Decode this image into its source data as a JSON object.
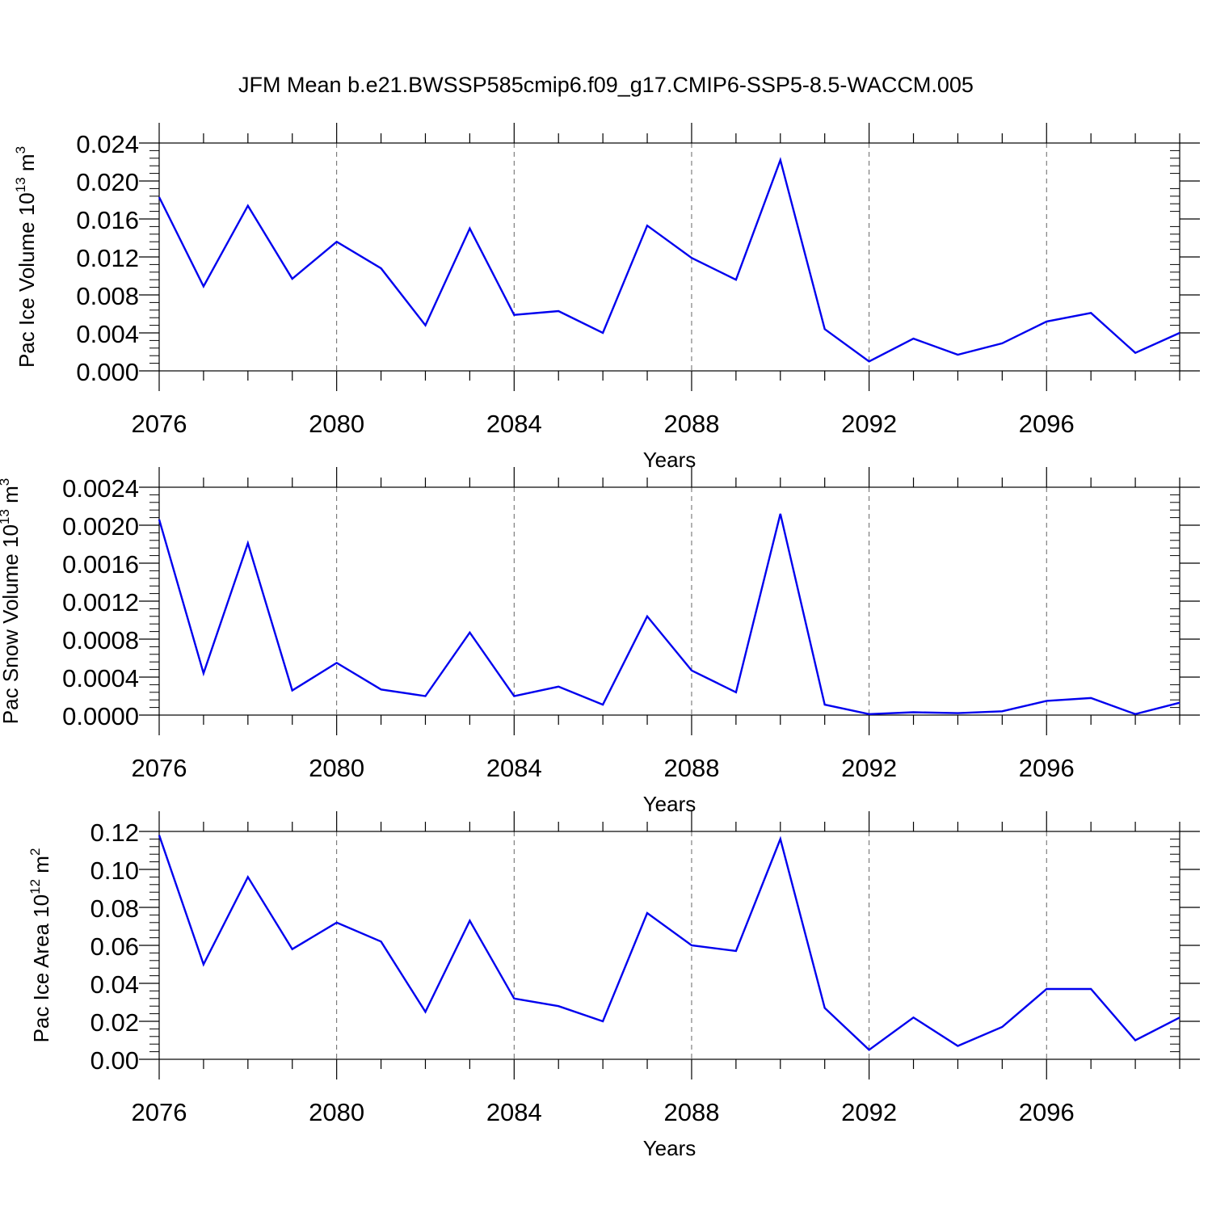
{
  "figure_title": "JFM Mean b.e21.BWSSP585cmip6.f09_g17.CMIP6-SSP5-8.5-WACCM.005",
  "chart_data": [
    {
      "type": "line",
      "ylabel_prefix": "Pac Ice Volume 10",
      "ylabel_exponent": "13",
      "ylabel_unit": " m",
      "ylabel_unit_exponent": "3",
      "xlabel": "Years",
      "xlim": [
        2076,
        2099
      ],
      "ylim": [
        0.0,
        0.024
      ],
      "xticks": [
        2076,
        2080,
        2084,
        2088,
        2092,
        2096
      ],
      "xtick_labels": [
        "2076",
        "2080",
        "2084",
        "2088",
        "2092",
        "2096"
      ],
      "yticks": [
        0.0,
        0.004,
        0.008,
        0.012,
        0.016,
        0.02,
        0.024
      ],
      "ytick_labels": [
        "0.000",
        "0.004",
        "0.008",
        "0.012",
        "0.016",
        "0.020",
        "0.024"
      ],
      "line_color": "#0000ee",
      "series": [
        {
          "name": "Pac Ice Volume",
          "x": [
            2076,
            2077,
            2078,
            2079,
            2080,
            2081,
            2082,
            2083,
            2084,
            2085,
            2086,
            2087,
            2088,
            2089,
            2090,
            2091,
            2092,
            2093,
            2094,
            2095,
            2096,
            2097,
            2098,
            2099
          ],
          "values": [
            0.0183,
            0.0089,
            0.0174,
            0.0097,
            0.0136,
            0.0108,
            0.0048,
            0.015,
            0.0059,
            0.0063,
            0.004,
            0.0153,
            0.0119,
            0.0096,
            0.0222,
            0.0044,
            0.001,
            0.0034,
            0.0017,
            0.0029,
            0.0052,
            0.0061,
            0.0019,
            0.004
          ]
        }
      ]
    },
    {
      "type": "line",
      "ylabel_prefix": "Pac Snow Volume 10",
      "ylabel_exponent": "13",
      "ylabel_unit": " m",
      "ylabel_unit_exponent": "3",
      "xlabel": "Years",
      "xlim": [
        2076,
        2099
      ],
      "ylim": [
        0.0,
        0.0024
      ],
      "xticks": [
        2076,
        2080,
        2084,
        2088,
        2092,
        2096
      ],
      "xtick_labels": [
        "2076",
        "2080",
        "2084",
        "2088",
        "2092",
        "2096"
      ],
      "yticks": [
        0.0,
        0.0004,
        0.0008,
        0.0012,
        0.0016,
        0.002,
        0.0024
      ],
      "ytick_labels": [
        "0.0000",
        "0.0004",
        "0.0008",
        "0.0012",
        "0.0016",
        "0.0020",
        "0.0024"
      ],
      "line_color": "#0000ee",
      "series": [
        {
          "name": "Pac Snow Volume",
          "x": [
            2076,
            2077,
            2078,
            2079,
            2080,
            2081,
            2082,
            2083,
            2084,
            2085,
            2086,
            2087,
            2088,
            2089,
            2090,
            2091,
            2092,
            2093,
            2094,
            2095,
            2096,
            2097,
            2098,
            2099
          ],
          "values": [
            0.00206,
            0.00044,
            0.00181,
            0.00026,
            0.00055,
            0.00027,
            0.0002,
            0.00087,
            0.0002,
            0.0003,
            0.00011,
            0.00104,
            0.00047,
            0.00024,
            0.00212,
            0.00011,
            1e-05,
            3e-05,
            2e-05,
            4e-05,
            0.00015,
            0.00018,
            1e-05,
            0.00013
          ]
        }
      ]
    },
    {
      "type": "line",
      "ylabel_prefix": "Pac Ice Area 10",
      "ylabel_exponent": "12",
      "ylabel_unit": " m",
      "ylabel_unit_exponent": "2",
      "xlabel": "Years",
      "xlim": [
        2076,
        2099
      ],
      "ylim": [
        0.0,
        0.12
      ],
      "xticks": [
        2076,
        2080,
        2084,
        2088,
        2092,
        2096
      ],
      "xtick_labels": [
        "2076",
        "2080",
        "2084",
        "2088",
        "2092",
        "2096"
      ],
      "yticks": [
        0.0,
        0.02,
        0.04,
        0.06,
        0.08,
        0.1,
        0.12
      ],
      "ytick_labels": [
        "0.00",
        "0.02",
        "0.04",
        "0.06",
        "0.08",
        "0.10",
        "0.12"
      ],
      "line_color": "#0000ee",
      "series": [
        {
          "name": "Pac Ice Area",
          "x": [
            2076,
            2077,
            2078,
            2079,
            2080,
            2081,
            2082,
            2083,
            2084,
            2085,
            2086,
            2087,
            2088,
            2089,
            2090,
            2091,
            2092,
            2093,
            2094,
            2095,
            2096,
            2097,
            2098,
            2099
          ],
          "values": [
            0.118,
            0.05,
            0.096,
            0.058,
            0.072,
            0.062,
            0.025,
            0.073,
            0.032,
            0.028,
            0.02,
            0.077,
            0.06,
            0.057,
            0.116,
            0.027,
            0.005,
            0.022,
            0.007,
            0.017,
            0.037,
            0.037,
            0.01,
            0.022
          ]
        }
      ]
    }
  ]
}
